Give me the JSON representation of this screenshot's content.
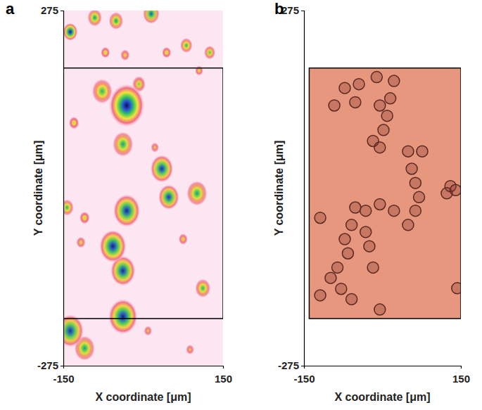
{
  "chart_data": [
    {
      "type": "heatmap",
      "panel_label": "a",
      "xlabel": "X coordinate [μm]",
      "ylabel": "Y coordinate [μm]",
      "xlim": [
        -150,
        150
      ],
      "ylim": [
        -275,
        275
      ],
      "xticks": [
        -150,
        150
      ],
      "yticks": [
        -275,
        275
      ],
      "spots": {
        "x": [
          -137,
          -91,
          -51,
          15,
          -71,
          -34,
          44,
          81,
          125,
          105,
          -31,
          -77,
          -8,
          -38,
          -130,
          35,
          48,
          101,
          -31,
          -57,
          -38,
          -110,
          -143,
          -117,
          75,
          112,
          -38,
          -137,
          -110,
          88,
          22,
          9
        ],
        "y": [
          242,
          264,
          259,
          270,
          210,
          206,
          210,
          221,
          210,
          182,
          128,
          150,
          161,
          68,
          101,
          30,
          -14,
          -8,
          -35,
          -90,
          -128,
          -46,
          -30,
          -84,
          -79,
          -155,
          -199,
          -221,
          -248,
          -250,
          63,
          -221
        ],
        "radius": [
          14,
          14,
          14,
          16,
          9,
          9,
          9,
          12,
          11,
          8,
          34,
          20,
          13,
          20,
          10,
          22,
          20,
          20,
          26,
          26,
          24,
          10,
          13,
          9,
          9,
          15,
          28,
          26,
          20,
          8,
          8,
          8
        ],
        "intensity": [
          0.95,
          0.7,
          0.7,
          0.8,
          0.5,
          0.45,
          0.5,
          0.65,
          0.6,
          0.45,
          1.0,
          0.65,
          0.55,
          0.7,
          0.5,
          0.9,
          0.88,
          0.7,
          0.92,
          0.95,
          0.92,
          0.5,
          0.65,
          0.45,
          0.45,
          0.65,
          0.95,
          0.9,
          0.7,
          0.4,
          0.4,
          0.4
        ]
      },
      "region": {
        "x": [
          -150,
          150
        ],
        "y": [
          -202,
          186
        ]
      }
    },
    {
      "type": "scatter",
      "panel_label": "b",
      "xlabel": "X coordinate [μm]",
      "ylabel": "Y coordinate [μm]",
      "xlim": [
        -150,
        150
      ],
      "ylim": [
        -275,
        275
      ],
      "xticks": [
        -150,
        150
      ],
      "yticks": [
        -275,
        275
      ],
      "cells": {
        "x": [
          -72,
          -45,
          -11,
          15,
          -52,
          -5,
          -92,
          22,
          9,
          2,
          -18,
          -5,
          49,
          76,
          56,
          63,
          70,
          63,
          49,
          130,
          123,
          140,
          22,
          -5,
          -32,
          -52,
          -59,
          -72,
          -66,
          -86,
          -99,
          -79,
          -59,
          -119,
          -119,
          -5,
          143,
          -18,
          -32,
          -25
        ],
        "y": [
          155,
          161,
          172,
          139,
          133,
          128,
          128,
          166,
          112,
          90,
          73,
          63,
          57,
          57,
          30,
          8,
          -14,
          -35,
          -57,
          3,
          -8,
          -3,
          -35,
          -25,
          -35,
          -30,
          -57,
          -79,
          -101,
          -123,
          -139,
          -156,
          -172,
          -46,
          -166,
          -188,
          -155,
          -123,
          -68,
          -90
        ]
      },
      "region": {
        "x": [
          -140,
          150
        ],
        "y": [
          -202,
          186
        ]
      }
    }
  ]
}
